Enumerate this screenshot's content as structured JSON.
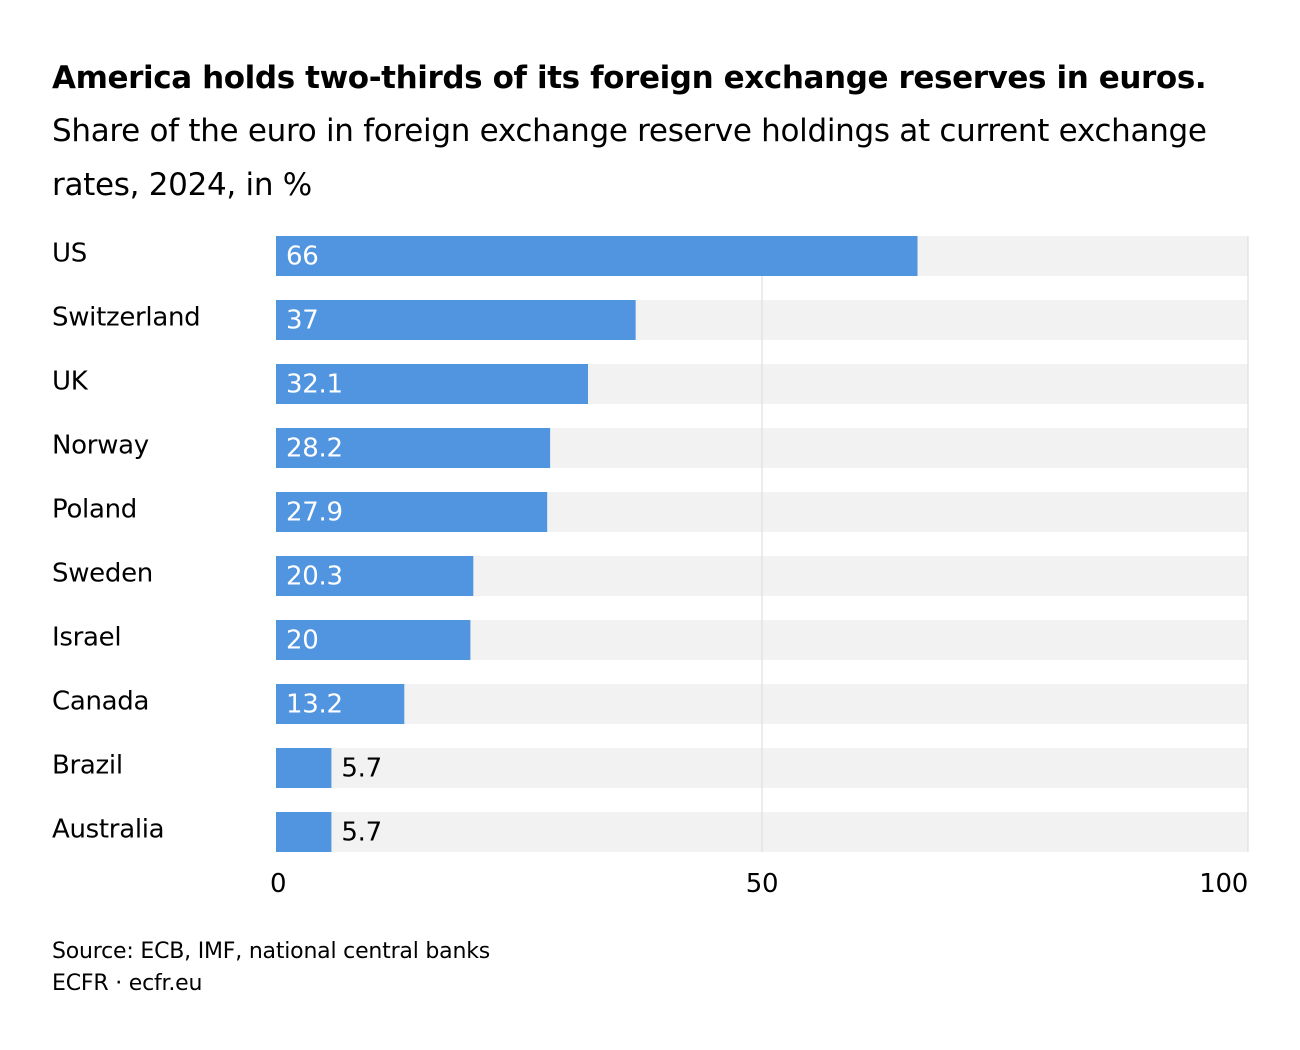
{
  "header": {
    "title": "America holds two-thirds of its foreign exchange reserves in euros.",
    "subtitle": "Share of the euro in foreign exchange reserve holdings at current exchange rates, 2024, in %"
  },
  "footer": {
    "source": "Source: ECB, IMF, national central banks",
    "credit": "ECFR · ecfr.eu"
  },
  "colors": {
    "bar": "#5195e1",
    "track": "#f2f2f2",
    "gridline": "#d9d9d9",
    "label_inside": "#ffffff",
    "label_outside": "#000000"
  },
  "chart_data": {
    "type": "bar",
    "orientation": "horizontal",
    "categories": [
      "US",
      "Switzerland",
      "UK",
      "Norway",
      "Poland",
      "Sweden",
      "Israel",
      "Canada",
      "Brazil",
      "Australia"
    ],
    "values": [
      66,
      37,
      32.1,
      28.2,
      27.9,
      20.3,
      20,
      13.2,
      5.7,
      5.7
    ],
    "value_labels": [
      "66",
      "37",
      "32.1",
      "28.2",
      "27.9",
      "20.3",
      "20",
      "13.2",
      "5.7",
      "5.7"
    ],
    "xlim": [
      0,
      100
    ],
    "xticks": [
      0,
      50,
      100
    ],
    "grid": true
  }
}
